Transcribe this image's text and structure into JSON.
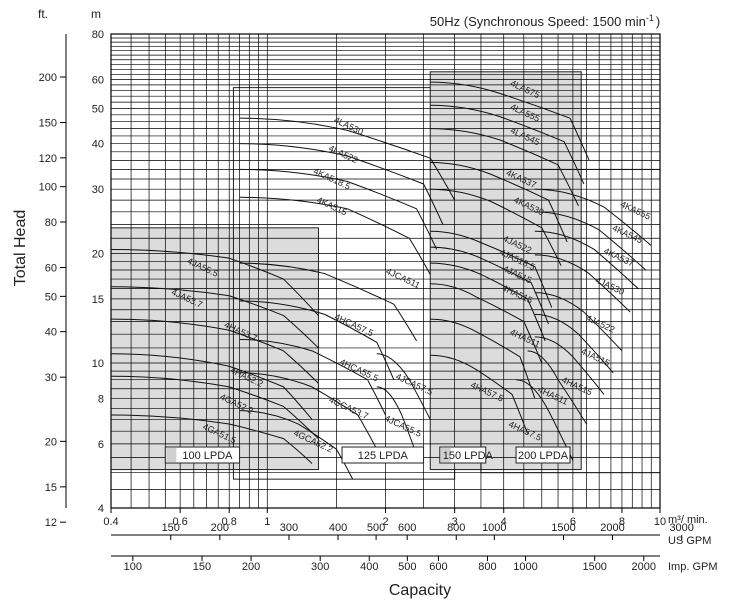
{
  "chart_data": {
    "type": "line",
    "title": "50Hz (Synchronous Speed: 1500 min",
    "title_sup": "-1",
    "title_close": ")",
    "y_unit_m": "m",
    "y_unit_ft": "ft.",
    "ylabel": "Total Head",
    "xlabel": "Capacity",
    "x_scale": "log",
    "y_scale": "log",
    "xlim_m3min": [
      0.4,
      10
    ],
    "ylim_m": [
      4,
      80
    ],
    "x_ticks_m3min": [
      {
        "v": 0.4,
        "label": "0.4"
      },
      {
        "v": 0.6,
        "label": "0.6"
      },
      {
        "v": 0.8,
        "label": "0.8"
      },
      {
        "v": 1,
        "label": "1"
      },
      {
        "v": 2,
        "label": "2"
      },
      {
        "v": 3,
        "label": "3"
      },
      {
        "v": 4,
        "label": "4"
      },
      {
        "v": 6,
        "label": "6"
      },
      {
        "v": 8,
        "label": "8"
      },
      {
        "v": 10,
        "label": "10"
      }
    ],
    "x_unit_m3min": "m³/ min.",
    "x_ticks_usgpm": [
      {
        "v": 150,
        "label": "150"
      },
      {
        "v": 200,
        "label": "200"
      },
      {
        "v": 300,
        "label": "300"
      },
      {
        "v": 400,
        "label": "400"
      },
      {
        "v": 500,
        "label": "500"
      },
      {
        "v": 600,
        "label": "600"
      },
      {
        "v": 800,
        "label": "800"
      },
      {
        "v": 1000,
        "label": "1000"
      },
      {
        "v": 1500,
        "label": "1500"
      },
      {
        "v": 2000,
        "label": "2000"
      },
      {
        "v": 3000,
        "label": "3000"
      }
    ],
    "x_unit_usgpm": "US GPM",
    "x_ticks_impgpm": [
      {
        "v": 100,
        "label": "100"
      },
      {
        "v": 150,
        "label": "150"
      },
      {
        "v": 200,
        "label": "200"
      },
      {
        "v": 300,
        "label": "300"
      },
      {
        "v": 400,
        "label": "400"
      },
      {
        "v": 500,
        "label": "500"
      },
      {
        "v": 600,
        "label": "600"
      },
      {
        "v": 800,
        "label": "800"
      },
      {
        "v": 1000,
        "label": "1000"
      },
      {
        "v": 1500,
        "label": "1500"
      },
      {
        "v": 2000,
        "label": "2000"
      }
    ],
    "x_unit_impgpm": "Imp. GPM",
    "y_ticks_m": [
      {
        "v": 4,
        "label": "4"
      },
      {
        "v": 6,
        "label": "6"
      },
      {
        "v": 8,
        "label": "8"
      },
      {
        "v": 10,
        "label": "10"
      },
      {
        "v": 15,
        "label": "15"
      },
      {
        "v": 20,
        "label": "20"
      },
      {
        "v": 30,
        "label": "30"
      },
      {
        "v": 40,
        "label": "40"
      },
      {
        "v": 50,
        "label": "50"
      },
      {
        "v": 60,
        "label": "60"
      },
      {
        "v": 80,
        "label": "80"
      }
    ],
    "y_ticks_ft": [
      {
        "v": 12,
        "label": "12"
      },
      {
        "v": 15,
        "label": "15"
      },
      {
        "v": 20,
        "label": "20"
      },
      {
        "v": 30,
        "label": "30"
      },
      {
        "v": 40,
        "label": "40"
      },
      {
        "v": 50,
        "label": "50"
      },
      {
        "v": 60,
        "label": "60"
      },
      {
        "v": 80,
        "label": "80"
      },
      {
        "v": 100,
        "label": "100"
      },
      {
        "v": 120,
        "label": "120"
      },
      {
        "v": 150,
        "label": "150"
      },
      {
        "v": 200,
        "label": "200"
      }
    ],
    "regions": [
      {
        "label": "100 LPDA",
        "shaded": true,
        "x": [
          0.4,
          1.35
        ],
        "y": [
          5.1,
          23.5
        ],
        "legend_x": [
          0.55,
          0.85
        ]
      },
      {
        "label": "125 LPDA",
        "shaded": false,
        "x": [
          0.82,
          3.0
        ],
        "y": [
          4.8,
          57
        ],
        "legend_x": [
          1.55,
          2.5
        ]
      },
      {
        "label": "150 LPDA",
        "shaded": true,
        "x": [
          2.6,
          6.3
        ],
        "y": [
          5.1,
          63
        ],
        "legend_x": [
          2.75,
          3.6
        ]
      },
      {
        "label": "200 LPDA",
        "shaded": false,
        "x": [
          3.5,
          10.0
        ],
        "y": [
          5.0,
          34
        ],
        "legend_x": [
          4.3,
          5.9
        ]
      }
    ],
    "series": [
      {
        "name": "4GA51.5",
        "x": [
          0.4,
          0.8,
          1.1,
          1.3
        ],
        "y": [
          7.2,
          6.8,
          6.2,
          5.3
        ]
      },
      {
        "name": "4GA52.2",
        "x": [
          0.4,
          0.8,
          1.1,
          1.35
        ],
        "y": [
          9.2,
          8.6,
          7.6,
          6.2
        ]
      },
      {
        "name": "4HA52.2",
        "x": [
          0.4,
          0.8,
          1.1,
          1.3
        ],
        "y": [
          10.6,
          9.8,
          8.6,
          7.0
        ]
      },
      {
        "name": "4HA53.7",
        "x": [
          0.4,
          0.8,
          1.1,
          1.35
        ],
        "y": [
          13.2,
          12.3,
          10.8,
          8.8
        ]
      },
      {
        "name": "4JA53.7",
        "x": [
          0.4,
          0.8,
          1.1,
          1.35
        ],
        "y": [
          16.2,
          15.3,
          13.5,
          11.0
        ]
      },
      {
        "name": "4JA55.5",
        "x": [
          0.4,
          0.8,
          1.1,
          1.35
        ],
        "y": [
          20.5,
          19.4,
          17.0,
          13.5
        ]
      },
      {
        "name": "4GCA52.2",
        "x": [
          0.85,
          1.2,
          1.5,
          1.65
        ],
        "y": [
          7.4,
          6.8,
          5.8,
          4.8
        ]
      },
      {
        "name": "4GCA53.7",
        "x": [
          0.85,
          1.3,
          1.7,
          1.9
        ],
        "y": [
          9.4,
          8.6,
          7.2,
          5.8
        ]
      },
      {
        "name": "4HCA55.5",
        "x": [
          0.85,
          1.3,
          1.8,
          2.0
        ],
        "y": [
          11.6,
          10.8,
          9.0,
          7.2
        ]
      },
      {
        "name": "4HCA57.5",
        "x": [
          0.85,
          1.4,
          1.9,
          2.1
        ],
        "y": [
          14.8,
          13.6,
          11.4,
          9.0
        ]
      },
      {
        "name": "4JCA511",
        "x": [
          0.85,
          1.4,
          2.1,
          2.4
        ],
        "y": [
          18.8,
          17.6,
          14.5,
          11.5
        ]
      },
      {
        "name": "4JCA55.5",
        "x": [
          1.9,
          2.2,
          2.4
        ],
        "y": [
          8.6,
          7.2,
          5.6
        ]
      },
      {
        "name": "4JCA57.5",
        "x": [
          1.9,
          2.3,
          2.6
        ],
        "y": [
          10.6,
          9.0,
          7.0
        ]
      },
      {
        "name": "4KA515",
        "x": [
          0.85,
          1.6,
          2.3,
          2.6
        ],
        "y": [
          28.5,
          26.5,
          22.0,
          17.5
        ]
      },
      {
        "name": "4KA518.5",
        "x": [
          0.85,
          1.6,
          2.4,
          2.7
        ],
        "y": [
          34.0,
          31.5,
          26.5,
          20.5
        ]
      },
      {
        "name": "4LA522",
        "x": [
          0.85,
          1.6,
          2.5,
          2.8
        ],
        "y": [
          40.0,
          37.0,
          31.0,
          24.0
        ]
      },
      {
        "name": "4LA530",
        "x": [
          0.85,
          1.6,
          2.6,
          3.0
        ],
        "y": [
          47.0,
          43.5,
          36.5,
          28.0
        ]
      },
      {
        "name": "4HA57.5",
        "x": [
          2.6,
          3.4,
          4.2,
          4.6
        ],
        "y": [
          10.5,
          9.6,
          8.2,
          6.4
        ]
      },
      {
        "name": "4HA511",
        "x": [
          2.6,
          3.4,
          4.4,
          4.8
        ],
        "y": [
          13.2,
          12.2,
          10.4,
          8.0
        ]
      },
      {
        "name": "4HA515",
        "x": [
          2.6,
          3.4,
          4.5,
          5.0
        ],
        "y": [
          16.5,
          15.2,
          13.0,
          10.0
        ]
      },
      {
        "name": "4JA515",
        "x": [
          2.6,
          3.5,
          4.6,
          5.1
        ],
        "y": [
          18.8,
          17.5,
          15.0,
          11.5
        ]
      },
      {
        "name": "4JA518.5",
        "x": [
          2.6,
          3.5,
          4.7,
          5.2
        ],
        "y": [
          20.8,
          19.4,
          16.6,
          12.8
        ]
      },
      {
        "name": "4JA522",
        "x": [
          2.6,
          3.5,
          4.8,
          5.3
        ],
        "y": [
          23.0,
          21.4,
          18.4,
          14.2
        ]
      },
      {
        "name": "4KA530",
        "x": [
          2.6,
          3.7,
          5.0,
          5.6
        ],
        "y": [
          30.0,
          27.8,
          23.5,
          18.5
        ]
      },
      {
        "name": "4KA537",
        "x": [
          2.6,
          3.7,
          5.2,
          5.8
        ],
        "y": [
          35.5,
          33.0,
          28.0,
          21.5
        ]
      },
      {
        "name": "4LA545",
        "x": [
          2.6,
          3.9,
          5.5,
          6.2
        ],
        "y": [
          44.0,
          41.0,
          35.0,
          27.0
        ]
      },
      {
        "name": "4LA555",
        "x": [
          2.6,
          3.9,
          5.7,
          6.4
        ],
        "y": [
          51.0,
          47.5,
          40.5,
          31.0
        ]
      },
      {
        "name": "4LA575",
        "x": [
          2.6,
          3.9,
          5.9,
          6.6
        ],
        "y": [
          59.0,
          55.0,
          47.0,
          36.0
        ]
      },
      {
        "name": "4HA511",
        "x": [
          4.3,
          5.2,
          6.0
        ],
        "y": [
          9.0,
          7.4,
          5.4
        ]
      },
      {
        "name": "4HA515",
        "x": [
          4.6,
          5.5,
          6.5
        ],
        "y": [
          10.8,
          9.0,
          6.8
        ]
      },
      {
        "name": "4JA515",
        "x": [
          4.8,
          6.0,
          7.2
        ],
        "y": [
          11.8,
          10.4,
          8.2
        ]
      },
      {
        "name": "4JA518.5",
        "x": [
          4.8,
          6.2,
          7.6
        ],
        "y": [
          13.6,
          12.0,
          9.4
        ]
      },
      {
        "name": "4JA522",
        "x": [
          4.8,
          6.4,
          8.0
        ],
        "y": [
          15.6,
          13.8,
          10.8
        ]
      },
      {
        "name": "4JA530",
        "x": [
          4.8,
          6.6,
          8.4
        ],
        "y": [
          19.8,
          17.6,
          13.8
        ]
      },
      {
        "name": "4KA537",
        "x": [
          4.8,
          6.8,
          8.8
        ],
        "y": [
          23.0,
          20.5,
          16.0
        ]
      },
      {
        "name": "4KA545",
        "x": [
          4.8,
          7.0,
          9.2
        ],
        "y": [
          26.0,
          23.2,
          18.0
        ]
      },
      {
        "name": "4KA555",
        "x": [
          4.8,
          7.2,
          9.5
        ],
        "y": [
          30.0,
          26.8,
          21.0
        ]
      }
    ],
    "label_positions": [
      {
        "text": "4LA575",
        "x": 4.5,
        "y": 55.5
      },
      {
        "text": "4LA555",
        "x": 4.5,
        "y": 47.8
      },
      {
        "text": "4LA545",
        "x": 4.5,
        "y": 41.2
      },
      {
        "text": "4LA530",
        "x": 1.6,
        "y": 44.0
      },
      {
        "text": "4LA522",
        "x": 1.55,
        "y": 36.8
      },
      {
        "text": "4KA518.5",
        "x": 1.45,
        "y": 31.5
      },
      {
        "text": "4KA515",
        "x": 1.45,
        "y": 26.5
      },
      {
        "text": "4KA537",
        "x": 4.4,
        "y": 31.5
      },
      {
        "text": "4KA530",
        "x": 4.6,
        "y": 26.5
      },
      {
        "text": "4JA522",
        "x": 4.3,
        "y": 20.8
      },
      {
        "text": "4JA518.5",
        "x": 4.3,
        "y": 18.9
      },
      {
        "text": "4JA515",
        "x": 4.3,
        "y": 17.2
      },
      {
        "text": "4HA515",
        "x": 4.3,
        "y": 15.2
      },
      {
        "text": "4HA511",
        "x": 4.5,
        "y": 11.5
      },
      {
        "text": "4HA57.5",
        "x": 3.6,
        "y": 8.2
      },
      {
        "text": "4HA57.5",
        "x": 4.5,
        "y": 6.4
      },
      {
        "text": "4HA511",
        "x": 5.3,
        "y": 8.0
      },
      {
        "text": "4HA515",
        "x": 6.1,
        "y": 8.5
      },
      {
        "text": "4JA515",
        "x": 6.8,
        "y": 10.2
      },
      {
        "text": "4JA522",
        "x": 7.0,
        "y": 12.6
      },
      {
        "text": "4JA530",
        "x": 7.4,
        "y": 16.0
      },
      {
        "text": "4KA537",
        "x": 7.8,
        "y": 19.2
      },
      {
        "text": "4KA545",
        "x": 8.2,
        "y": 22.2
      },
      {
        "text": "4KA555",
        "x": 8.6,
        "y": 25.8
      },
      {
        "text": "4JCA511",
        "x": 2.2,
        "y": 16.8
      },
      {
        "text": "4HCA57.5",
        "x": 1.65,
        "y": 12.5
      },
      {
        "text": "4HCA55.5",
        "x": 1.7,
        "y": 9.4
      },
      {
        "text": "4GCA53.7",
        "x": 1.6,
        "y": 7.4
      },
      {
        "text": "4GCA52.2",
        "x": 1.3,
        "y": 6.0
      },
      {
        "text": "4JCA57.5",
        "x": 2.35,
        "y": 8.6
      },
      {
        "text": "4JCA55.5",
        "x": 2.2,
        "y": 6.6
      },
      {
        "text": "4JA55.5",
        "x": 0.68,
        "y": 18.0
      },
      {
        "text": "4JA53.7",
        "x": 0.62,
        "y": 14.8
      },
      {
        "text": "4HA53.7",
        "x": 0.85,
        "y": 12.0
      },
      {
        "text": "4HA52.2",
        "x": 0.88,
        "y": 9.0
      },
      {
        "text": "4GA52.2",
        "x": 0.83,
        "y": 7.6
      },
      {
        "text": "4GA51.5",
        "x": 0.75,
        "y": 6.3
      }
    ]
  }
}
